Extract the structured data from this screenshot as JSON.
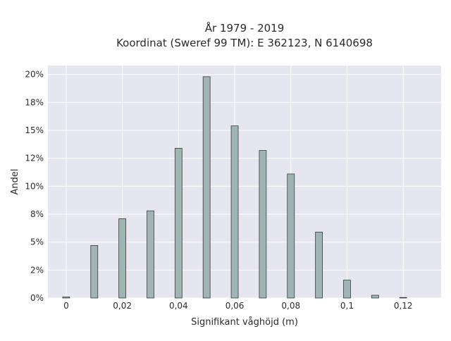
{
  "chart_data": {
    "type": "bar",
    "title_line1": "År 1979 - 2019",
    "title_line2": "Koordinat (Sweref 99 TM): E 362123, N 6140698",
    "xlabel": "Signifikant våghöjd (m)",
    "ylabel": "Andel",
    "x_ticks": [
      "0",
      "0,02",
      "0,04",
      "0,06",
      "0,08",
      "0,1",
      "0,12"
    ],
    "x_tick_values": [
      0,
      0.02,
      0.04,
      0.06,
      0.08,
      0.1,
      0.12
    ],
    "y_ticks": [
      "0%",
      "2%",
      "5%",
      "8%",
      "10%",
      "12%",
      "15%",
      "18%",
      "20%"
    ],
    "y_tick_values": [
      0,
      2.5,
      5,
      7.5,
      10,
      12.5,
      15,
      17.5,
      20
    ],
    "xlim": [
      -0.0065,
      0.1335
    ],
    "ylim": [
      0,
      20.8
    ],
    "x": [
      0,
      0.01,
      0.02,
      0.03,
      0.04,
      0.05,
      0.06,
      0.07,
      0.08,
      0.09,
      0.1,
      0.11,
      0.12
    ],
    "values": [
      0.1,
      4.7,
      7.1,
      7.8,
      13.4,
      19.8,
      15.4,
      13.2,
      11.1,
      5.9,
      1.6,
      0.25,
      0.05
    ],
    "bar_color": "#9fb4b5",
    "bar_edge_color": "#3a3a3a",
    "plot_bg": "#e5e6ef",
    "grid": true
  }
}
